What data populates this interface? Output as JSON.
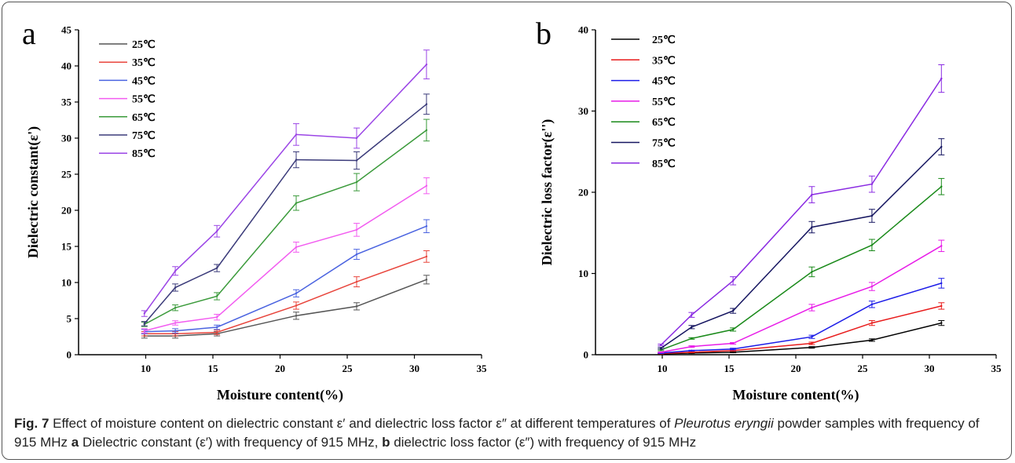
{
  "caption": {
    "fig_label": "Fig. 7",
    "part1": " Effect of moisture content on dielectric constant ε′ and dielectric loss factor ε″ at different temperatures of ",
    "species": "Pleurotus eryngii",
    "part2": " powder samples with frequency of 915 MHz ",
    "a_label": "a",
    "part3": " Dielectric constant (ε′) with frequency of 915 MHz, ",
    "b_label": "b",
    "part4": " dielectric loss factor (ε″) with frequency of 915 MHz"
  },
  "chart_data": [
    {
      "panel": "a",
      "type": "line",
      "xlabel": "Moisture content(%)",
      "ylabel": "Dielectric constant(ε')",
      "xlim": [
        5,
        35
      ],
      "ylim": [
        0,
        45
      ],
      "xticks": [
        10,
        15,
        20,
        25,
        30,
        35
      ],
      "yticks": [
        0,
        5,
        10,
        15,
        20,
        25,
        30,
        35,
        40,
        45
      ],
      "legend_position": "top-left",
      "x": [
        9.9,
        12.2,
        15.3,
        21.2,
        25.7,
        30.9
      ],
      "series": [
        {
          "name": "25℃",
          "color": "#555555",
          "values": [
            2.6,
            2.6,
            2.9,
            5.4,
            6.7,
            10.4
          ],
          "errors": [
            0.3,
            0.3,
            0.3,
            0.5,
            0.5,
            0.6
          ]
        },
        {
          "name": "35℃",
          "color": "#e8453c",
          "values": [
            2.9,
            2.9,
            3.1,
            6.8,
            10.1,
            13.6
          ],
          "errors": [
            0.3,
            0.3,
            0.3,
            0.5,
            0.7,
            0.8
          ]
        },
        {
          "name": "45℃",
          "color": "#4a63e0",
          "values": [
            3.2,
            3.3,
            3.8,
            8.5,
            13.9,
            17.8
          ],
          "errors": [
            0.3,
            0.3,
            0.3,
            0.5,
            0.7,
            0.9
          ]
        },
        {
          "name": "55℃",
          "color": "#f25cf0",
          "values": [
            3.3,
            4.4,
            5.2,
            14.9,
            17.3,
            23.4
          ],
          "errors": [
            0.3,
            0.3,
            0.4,
            0.7,
            0.9,
            1.1
          ]
        },
        {
          "name": "65℃",
          "color": "#3a9a3a",
          "values": [
            4.2,
            6.5,
            8.1,
            21.0,
            23.9,
            31.1
          ],
          "errors": [
            0.3,
            0.4,
            0.5,
            1.0,
            1.2,
            1.5
          ]
        },
        {
          "name": "75℃",
          "color": "#3b3b7a",
          "values": [
            4.3,
            9.3,
            12.0,
            27.0,
            26.9,
            34.7
          ],
          "errors": [
            0.3,
            0.5,
            0.5,
            1.1,
            1.2,
            1.4
          ]
        },
        {
          "name": "85℃",
          "color": "#9b45e6",
          "values": [
            5.7,
            11.6,
            17.1,
            30.5,
            30.0,
            40.2
          ],
          "errors": [
            0.4,
            0.6,
            0.8,
            1.5,
            1.4,
            2.0
          ]
        }
      ]
    },
    {
      "panel": "b",
      "type": "line",
      "xlabel": "Moisture content(%)",
      "ylabel": "Dielectric loss factor(ε'')",
      "xlim": [
        5,
        35
      ],
      "ylim": [
        0,
        40
      ],
      "xticks": [
        10,
        15,
        20,
        25,
        30,
        35
      ],
      "yticks": [
        0,
        10,
        20,
        30,
        40
      ],
      "legend_position": "top-left",
      "x": [
        9.9,
        12.2,
        15.3,
        21.2,
        25.7,
        30.9
      ],
      "series": [
        {
          "name": "25℃",
          "color": "#000000",
          "values": [
            0.1,
            0.2,
            0.3,
            0.9,
            1.8,
            3.9
          ],
          "errors": [
            0.05,
            0.05,
            0.05,
            0.1,
            0.15,
            0.3
          ]
        },
        {
          "name": "35℃",
          "color": "#e81c1c",
          "values": [
            0.15,
            0.3,
            0.5,
            1.4,
            3.9,
            6.0
          ],
          "errors": [
            0.05,
            0.05,
            0.05,
            0.15,
            0.3,
            0.4
          ]
        },
        {
          "name": "45℃",
          "color": "#1c1ce8",
          "values": [
            0.2,
            0.5,
            0.7,
            2.2,
            6.2,
            8.8
          ],
          "errors": [
            0.05,
            0.05,
            0.1,
            0.2,
            0.4,
            0.6
          ]
        },
        {
          "name": "55℃",
          "color": "#e81ce8",
          "values": [
            0.3,
            1.0,
            1.4,
            5.8,
            8.4,
            13.4
          ],
          "errors": [
            0.05,
            0.1,
            0.1,
            0.4,
            0.5,
            0.7
          ]
        },
        {
          "name": "65℃",
          "color": "#1a8a1a",
          "values": [
            0.6,
            2.0,
            3.1,
            10.2,
            13.5,
            20.7
          ],
          "errors": [
            0.1,
            0.1,
            0.2,
            0.6,
            0.7,
            1.0
          ]
        },
        {
          "name": "75℃",
          "color": "#151560",
          "values": [
            0.8,
            3.4,
            5.4,
            15.7,
            17.1,
            25.6
          ],
          "errors": [
            0.1,
            0.2,
            0.3,
            0.7,
            0.8,
            1.0
          ]
        },
        {
          "name": "85℃",
          "color": "#8a2be2",
          "values": [
            1.2,
            4.9,
            9.1,
            19.7,
            21.0,
            34.0
          ],
          "errors": [
            0.1,
            0.3,
            0.5,
            1.0,
            1.0,
            1.7
          ]
        }
      ]
    }
  ],
  "panel_labels": [
    "a",
    "b"
  ]
}
